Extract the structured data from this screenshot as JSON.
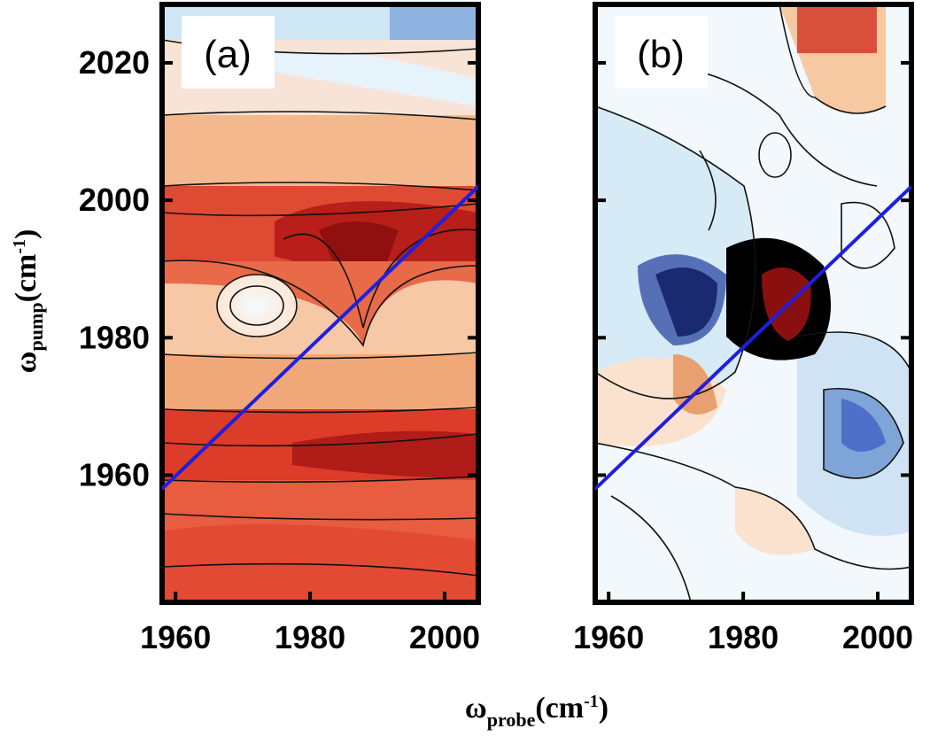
{
  "figure": {
    "xlabel": [
      "ω",
      "probe",
      "(cm",
      "-1",
      ")"
    ],
    "ylabel": [
      "ω",
      "pump",
      "(cm",
      "-1",
      ")"
    ]
  },
  "chart_data": [
    {
      "type": "contour",
      "panel_label": "(a)",
      "xlim": [
        1958,
        2005
      ],
      "ylim": [
        1941.5,
        2028.5
      ],
      "xticks": [
        1960,
        1980,
        2000
      ],
      "yticks": [
        1960,
        1980,
        2000,
        2020
      ],
      "show_ytick_labels": true,
      "diagonal": {
        "color": "#1f1fe0",
        "x": [
          1958,
          2005
        ],
        "y": [
          1958,
          2002
        ]
      }
    },
    {
      "type": "contour",
      "panel_label": "(b)",
      "xlim": [
        1958,
        2005
      ],
      "ylim": [
        1941.5,
        2028.5
      ],
      "xticks": [
        1960,
        1980,
        2000
      ],
      "yticks": [
        1960,
        1980,
        2000,
        2020
      ],
      "show_ytick_labels": false,
      "diagonal": {
        "color": "#1f1fe0",
        "x": [
          1958,
          2005
        ],
        "y": [
          1958,
          2002
        ]
      }
    }
  ]
}
